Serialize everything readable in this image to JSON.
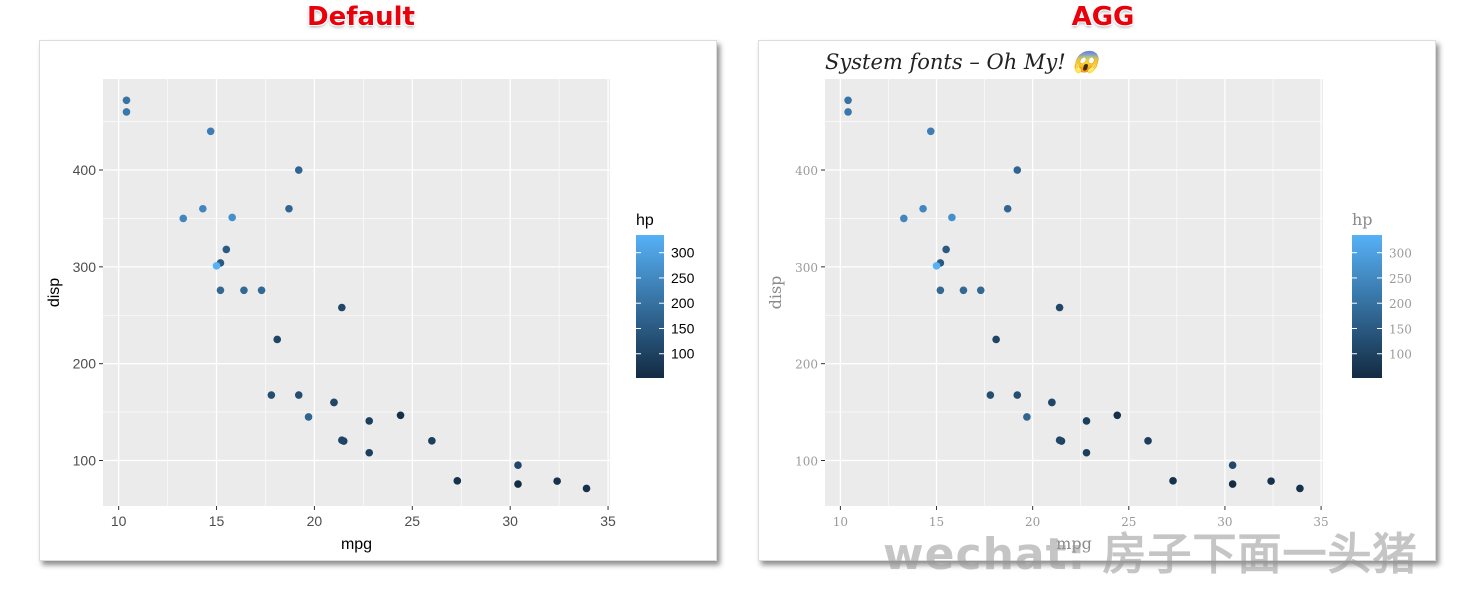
{
  "headings": {
    "left": "Default",
    "right": "AGG"
  },
  "watermark": "wechat: 房子下面一头猪",
  "colors": {
    "heading": "#e8000b",
    "panel_bg": "#ebebeb",
    "grid": "#ffffff",
    "low": "#132b43",
    "high": "#56b1f7"
  },
  "chart_data": [
    {
      "type": "scatter",
      "title": "",
      "xlabel": "mpg",
      "ylabel": "disp",
      "xlim": [
        9.2,
        35.1
      ],
      "ylim": [
        53,
        494
      ],
      "xticks": [
        10,
        15,
        20,
        25,
        30,
        35
      ],
      "yticks": [
        100,
        200,
        300,
        400
      ],
      "grid": true,
      "legend": {
        "title": "hp",
        "placement": "right",
        "ticks": [
          100,
          150,
          200,
          250,
          300
        ],
        "range": [
          52,
          335
        ]
      },
      "points": [
        {
          "x": 21.0,
          "y": 160,
          "hp": 110
        },
        {
          "x": 21.0,
          "y": 160,
          "hp": 110
        },
        {
          "x": 22.8,
          "y": 108,
          "hp": 93
        },
        {
          "x": 21.4,
          "y": 258,
          "hp": 110
        },
        {
          "x": 18.7,
          "y": 360,
          "hp": 175
        },
        {
          "x": 18.1,
          "y": 225,
          "hp": 105
        },
        {
          "x": 14.3,
          "y": 360,
          "hp": 245
        },
        {
          "x": 24.4,
          "y": 146.7,
          "hp": 62
        },
        {
          "x": 22.8,
          "y": 140.8,
          "hp": 95
        },
        {
          "x": 19.2,
          "y": 167.6,
          "hp": 123
        },
        {
          "x": 17.8,
          "y": 167.6,
          "hp": 123
        },
        {
          "x": 16.4,
          "y": 275.8,
          "hp": 180
        },
        {
          "x": 17.3,
          "y": 275.8,
          "hp": 180
        },
        {
          "x": 15.2,
          "y": 275.8,
          "hp": 180
        },
        {
          "x": 10.4,
          "y": 472,
          "hp": 205
        },
        {
          "x": 10.4,
          "y": 460,
          "hp": 215
        },
        {
          "x": 14.7,
          "y": 440,
          "hp": 230
        },
        {
          "x": 32.4,
          "y": 78.7,
          "hp": 66
        },
        {
          "x": 30.4,
          "y": 75.7,
          "hp": 52
        },
        {
          "x": 33.9,
          "y": 71.1,
          "hp": 65
        },
        {
          "x": 21.5,
          "y": 120.1,
          "hp": 97
        },
        {
          "x": 15.5,
          "y": 318,
          "hp": 150
        },
        {
          "x": 15.2,
          "y": 304,
          "hp": 150
        },
        {
          "x": 13.3,
          "y": 350,
          "hp": 245
        },
        {
          "x": 19.2,
          "y": 400,
          "hp": 175
        },
        {
          "x": 27.3,
          "y": 79,
          "hp": 66
        },
        {
          "x": 26.0,
          "y": 120.3,
          "hp": 91
        },
        {
          "x": 30.4,
          "y": 95.1,
          "hp": 113
        },
        {
          "x": 15.8,
          "y": 351,
          "hp": 264
        },
        {
          "x": 19.7,
          "y": 145,
          "hp": 175
        },
        {
          "x": 15.0,
          "y": 301,
          "hp": 335
        },
        {
          "x": 21.4,
          "y": 121,
          "hp": 109
        }
      ]
    },
    {
      "type": "scatter",
      "title": "System fonts – Oh My! 😱",
      "xlabel": "mpg",
      "ylabel": "disp",
      "xlim": [
        9.2,
        35.1
      ],
      "ylim": [
        53,
        494
      ],
      "xticks": [
        10,
        15,
        20,
        25,
        30,
        35
      ],
      "yticks": [
        100,
        200,
        300,
        400
      ],
      "grid": true,
      "legend": {
        "title": "hp",
        "placement": "right",
        "ticks": [
          100,
          150,
          200,
          250,
          300
        ],
        "range": [
          52,
          335
        ]
      },
      "points": "same-as-left"
    }
  ]
}
